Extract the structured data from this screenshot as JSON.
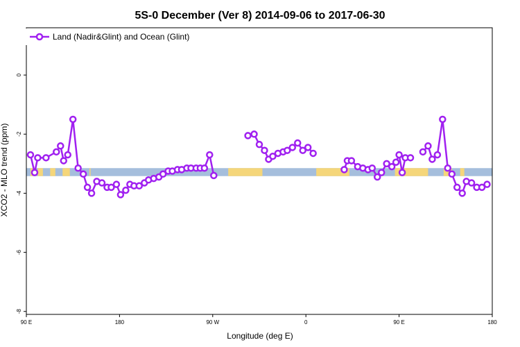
{
  "chart_data": {
    "type": "line",
    "title": "5S-0 December (Ver 8)   2014-09-06 to 2017-06-30",
    "xlabel": "Longitude (deg E)",
    "ylabel": "XCO2 - MLO trend (ppm)",
    "xlim": [
      90,
      540
    ],
    "ylim": [
      -8.1,
      1.6
    ],
    "x_ticks": [
      {
        "value": 90,
        "label": "90 E"
      },
      {
        "value": 180,
        "label": "180"
      },
      {
        "value": 270,
        "label": "90 W"
      },
      {
        "value": 360,
        "label": "0"
      },
      {
        "value": 450,
        "label": "90 E"
      },
      {
        "value": 540,
        "label": "180"
      }
    ],
    "y_ticks": [
      {
        "value": 0,
        "label": "0"
      },
      {
        "value": -2,
        "label": "-2"
      },
      {
        "value": -4,
        "label": "-4"
      },
      {
        "value": -6,
        "label": "-6"
      },
      {
        "value": -8,
        "label": "-8"
      }
    ],
    "legend": {
      "position": "top-left",
      "entries": [
        "Land (Nadir&Glint) and Ocean (Glint)"
      ]
    },
    "line_color": "#a020f0",
    "band": {
      "y_from": -3.15,
      "y_to": -3.42,
      "ocean_color": "#a5bedc",
      "land_color": "#f5d67a"
    },
    "land_segments": [
      [
        94,
        98
      ],
      [
        101,
        106
      ],
      [
        113,
        118
      ],
      [
        125,
        132
      ],
      [
        151,
        152
      ],
      [
        285,
        318
      ],
      [
        370,
        402
      ],
      [
        446,
        478
      ],
      [
        493,
        501
      ],
      [
        509,
        513
      ]
    ],
    "series": [
      {
        "name": "Land (Nadir&Glint) and Ocean (Glint)",
        "segments": [
          {
            "x": [
              94,
              98,
              101,
              109,
              119,
              123,
              126,
              130,
              135,
              140,
              145,
              149,
              153,
              158,
              163,
              168,
              172,
              177,
              181,
              186,
              190,
              194,
              199,
              204,
              208,
              213,
              218,
              222,
              227,
              231,
              236,
              240,
              245,
              249,
              254,
              258,
              262,
              267,
              271,
              276
            ],
            "y": [
              -2.7,
              -3.3,
              -2.8,
              -2.8,
              -2.6,
              -2.4,
              -2.9,
              -2.7,
              -1.5,
              -3.15,
              -3.35,
              -3.8,
              -4.0,
              -3.6,
              -3.65,
              -3.8,
              -3.8,
              -3.7,
              -4.05,
              -3.9,
              -3.7,
              -3.75,
              -3.75,
              -3.65,
              -3.55,
              -3.5,
              -3.45,
              -3.35,
              -3.25,
              -3.25,
              -3.2,
              -3.2,
              -3.15,
              -3.15,
              -3.15,
              -3.15,
              -3.15,
              -2.7,
              -3.4,
              null
            ]
          },
          {
            "x": [
              304,
              310,
              315,
              320,
              324,
              328,
              333,
              338,
              342,
              347,
              352,
              357,
              362,
              367
            ],
            "y": [
              -2.05,
              -2.0,
              -2.35,
              -2.55,
              -2.85,
              -2.75,
              -2.65,
              -2.6,
              -2.55,
              -2.45,
              -2.3,
              -2.55,
              -2.45,
              -2.65
            ]
          },
          {
            "x": [
              124,
              128
            ],
            "y": [
              null,
              null
            ]
          },
          {
            "x": [
              397,
              400,
              404,
              410,
              415,
              420,
              424,
              429,
              433,
              438,
              443,
              447,
              450,
              453,
              456,
              461
            ],
            "y": [
              -3.2,
              -2.9,
              -2.9,
              -3.1,
              -3.15,
              -3.2,
              -3.15,
              -3.45,
              -3.3,
              -3.0,
              -3.1,
              -2.95,
              -2.7,
              -3.3,
              -2.8,
              -2.8
            ]
          },
          {
            "x": [
              473,
              478,
              482,
              487,
              492,
              497,
              501,
              506,
              511,
              515,
              520,
              525,
              530,
              535,
              540
            ],
            "y": [
              -2.6,
              -2.4,
              -2.85,
              -2.7,
              -1.5,
              -3.15,
              -3.35,
              -3.8,
              -4.0,
              -3.6,
              -3.65,
              -3.8,
              -3.8,
              -3.7,
              null
            ]
          }
        ]
      }
    ]
  }
}
